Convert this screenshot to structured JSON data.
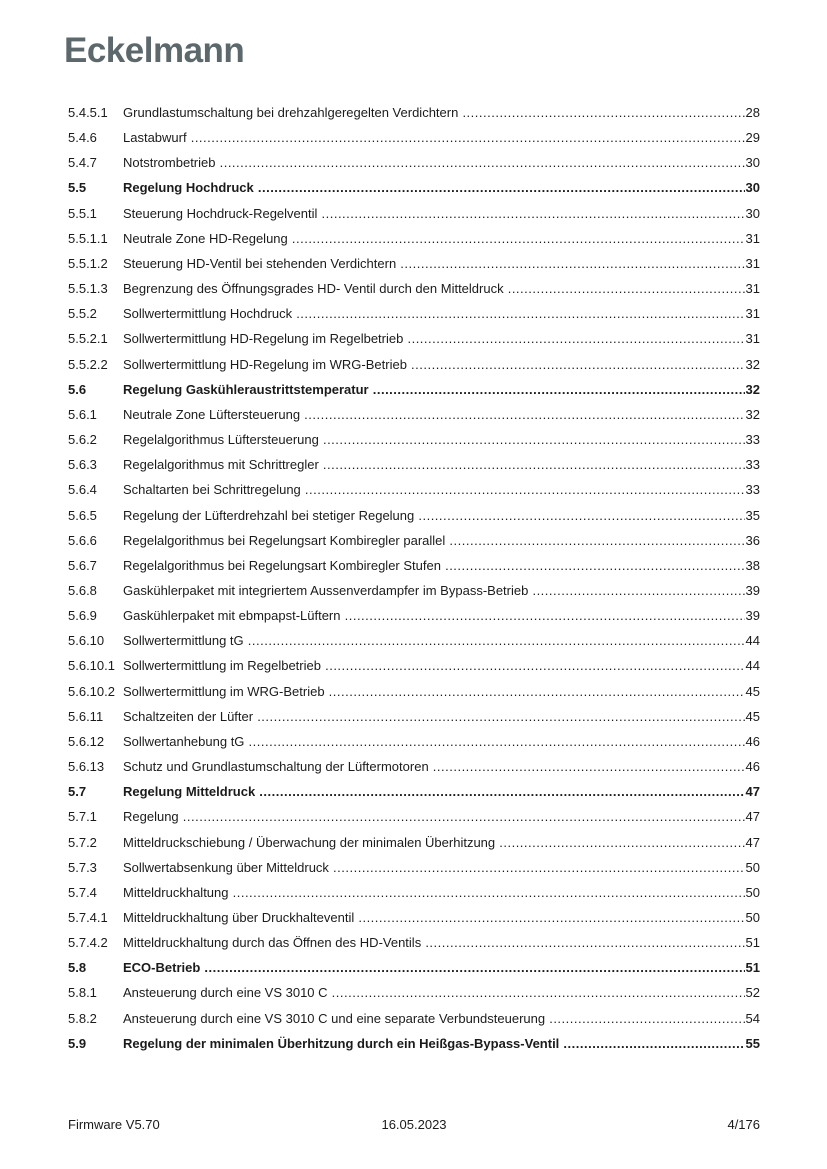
{
  "page": {
    "logo_text": "Eckelmann",
    "logo_color": "#5d686d",
    "text_color": "#1b1b1b"
  },
  "toc": {
    "entries": [
      {
        "num": "5.4.5.1",
        "title": "Grundlastumschaltung bei drehzahlgeregelten Verdichtern",
        "page": "28",
        "bold": false
      },
      {
        "num": "5.4.6",
        "title": "Lastabwurf",
        "page": "29",
        "bold": false
      },
      {
        "num": "5.4.7",
        "title": "Notstrombetrieb",
        "page": "30",
        "bold": false
      },
      {
        "num": "5.5",
        "title": "Regelung Hochdruck",
        "page": "30",
        "bold": true
      },
      {
        "num": "5.5.1",
        "title": "Steuerung Hochdruck-Regelventil",
        "page": "30",
        "bold": false
      },
      {
        "num": "5.5.1.1",
        "title": "Neutrale Zone HD-Regelung",
        "page": "31",
        "bold": false
      },
      {
        "num": "5.5.1.2",
        "title": "Steuerung HD-Ventil bei stehenden Verdichtern",
        "page": "31",
        "bold": false
      },
      {
        "num": "5.5.1.3",
        "title": "Begrenzung des Öffnungsgrades HD- Ventil durch den Mitteldruck",
        "page": "31",
        "bold": false
      },
      {
        "num": "5.5.2",
        "title": "Sollwertermittlung Hochdruck",
        "page": "31",
        "bold": false
      },
      {
        "num": "5.5.2.1",
        "title": "Sollwertermittlung HD-Regelung im Regelbetrieb",
        "page": "31",
        "bold": false
      },
      {
        "num": "5.5.2.2",
        "title": "Sollwertermittlung HD-Regelung im WRG-Betrieb",
        "page": "32",
        "bold": false
      },
      {
        "num": "5.6",
        "title": "Regelung Gaskühleraustrittstemperatur",
        "page": "32",
        "bold": true
      },
      {
        "num": "5.6.1",
        "title": "Neutrale Zone Lüftersteuerung",
        "page": "32",
        "bold": false
      },
      {
        "num": "5.6.2",
        "title": "Regelalgorithmus Lüftersteuerung",
        "page": "33",
        "bold": false
      },
      {
        "num": "5.6.3",
        "title": "Regelalgorithmus mit Schrittregler",
        "page": "33",
        "bold": false
      },
      {
        "num": "5.6.4",
        "title": "Schaltarten bei Schrittregelung",
        "page": "33",
        "bold": false
      },
      {
        "num": "5.6.5",
        "title": "Regelung der Lüfterdrehzahl bei stetiger Regelung",
        "page": "35",
        "bold": false
      },
      {
        "num": "5.6.6",
        "title": "Regelalgorithmus bei Regelungsart Kombiregler parallel",
        "page": "36",
        "bold": false
      },
      {
        "num": "5.6.7",
        "title": "Regelalgorithmus bei Regelungsart Kombiregler Stufen",
        "page": "38",
        "bold": false
      },
      {
        "num": "5.6.8",
        "title": "Gaskühlerpaket mit integriertem Aussenverdampfer im Bypass-Betrieb",
        "page": "39",
        "bold": false
      },
      {
        "num": "5.6.9",
        "title": "Gaskühlerpaket mit ebmpapst-Lüftern",
        "page": "39",
        "bold": false
      },
      {
        "num": "5.6.10",
        "title": "Sollwertermittlung tG",
        "page": "44",
        "bold": false
      },
      {
        "num": "5.6.10.1",
        "title": "Sollwertermittlung im Regelbetrieb",
        "page": "44",
        "bold": false
      },
      {
        "num": "5.6.10.2",
        "title": "Sollwertermittlung im WRG-Betrieb",
        "page": "45",
        "bold": false
      },
      {
        "num": "5.6.11",
        "title": "Schaltzeiten der Lüfter",
        "page": "45",
        "bold": false
      },
      {
        "num": "5.6.12",
        "title": "Sollwertanhebung tG",
        "page": "46",
        "bold": false
      },
      {
        "num": "5.6.13",
        "title": "Schutz und Grundlastumschaltung der Lüftermotoren",
        "page": "46",
        "bold": false
      },
      {
        "num": "5.7",
        "title": "Regelung Mitteldruck",
        "page": "47",
        "bold": true
      },
      {
        "num": "5.7.1",
        "title": "Regelung",
        "page": "47",
        "bold": false
      },
      {
        "num": "5.7.2",
        "title": "Mitteldruckschiebung / Überwachung der minimalen Überhitzung",
        "page": "47",
        "bold": false
      },
      {
        "num": "5.7.3",
        "title": "Sollwertabsenkung über Mitteldruck",
        "page": "50",
        "bold": false
      },
      {
        "num": "5.7.4",
        "title": "Mitteldruckhaltung",
        "page": "50",
        "bold": false
      },
      {
        "num": "5.7.4.1",
        "title": "Mitteldruckhaltung über Druckhalteventil",
        "page": "50",
        "bold": false
      },
      {
        "num": "5.7.4.2",
        "title": "Mitteldruckhaltung durch das Öffnen des HD-Ventils",
        "page": "51",
        "bold": false
      },
      {
        "num": "5.8",
        "title": "ECO-Betrieb",
        "page": "51",
        "bold": true
      },
      {
        "num": "5.8.1",
        "title": "Ansteuerung durch eine VS 3010 C",
        "page": "52",
        "bold": false
      },
      {
        "num": "5.8.2",
        "title": "Ansteuerung durch eine VS 3010 C und eine separate Verbundsteuerung",
        "page": "54",
        "bold": false
      },
      {
        "num": "5.9",
        "title": "Regelung der minimalen Überhitzung durch ein Heißgas-Bypass-Ventil",
        "page": "55",
        "bold": true
      }
    ]
  },
  "footer": {
    "firmware": "Firmware V5.70",
    "date": "16.05.2023",
    "page_indicator": "4/176"
  }
}
